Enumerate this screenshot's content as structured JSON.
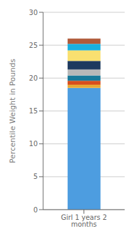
{
  "chart_data": {
    "type": "bar",
    "categories": [
      "Girl 1 years 2 months"
    ],
    "series": [
      {
        "color": "#4d9de0",
        "values": [
          18.5
        ]
      },
      {
        "color": "#e8a838",
        "values": [
          0.5
        ]
      },
      {
        "color": "#d94f1e",
        "values": [
          0.6
        ]
      },
      {
        "color": "#1a7a9a",
        "values": [
          0.8
        ]
      },
      {
        "color": "#b8b8b8",
        "values": [
          0.9
        ]
      },
      {
        "color": "#1e3a5f",
        "values": [
          1.3
        ]
      },
      {
        "color": "#f9e070",
        "values": [
          1.6
        ]
      },
      {
        "color": "#1ab0e0",
        "values": [
          1.0
        ]
      },
      {
        "color": "#b05a3a",
        "values": [
          0.8
        ]
      }
    ],
    "stacked": true,
    "ylabel": "Percentile Weight in Pounds",
    "ylim": [
      0,
      30
    ],
    "yticks": [
      0,
      5,
      10,
      15,
      20,
      25,
      30
    ],
    "grid": true
  }
}
